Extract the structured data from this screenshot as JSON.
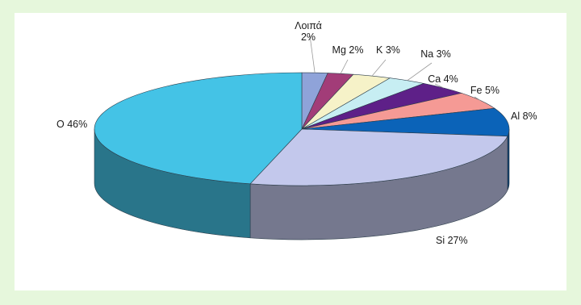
{
  "chart_data": {
    "type": "pie",
    "style": "3d-exploded-none",
    "slices": [
      {
        "label": "Λοιπά 2%",
        "label_lines": [
          "Λοιπά",
          "2%"
        ],
        "value": 2,
        "color": "#8fa3d9"
      },
      {
        "label": "Mg 2%",
        "value": 2,
        "color": "#a23c78"
      },
      {
        "label": "K 3%",
        "value": 3,
        "color": "#f6f2c8"
      },
      {
        "label": "Na 3%",
        "value": 3,
        "color": "#c7eef3"
      },
      {
        "label": "Ca 4%",
        "value": 4,
        "color": "#5e2088"
      },
      {
        "label": "Fe 5%",
        "value": 5,
        "color": "#f59a95"
      },
      {
        "label": "Al 8%",
        "value": 8,
        "color": "#0b63b8"
      },
      {
        "label": "Si 27%",
        "value": 27,
        "color": "#c3c8ec"
      },
      {
        "label": "O 46%",
        "value": 46,
        "color": "#44c3e6"
      }
    ],
    "legend": "none"
  }
}
